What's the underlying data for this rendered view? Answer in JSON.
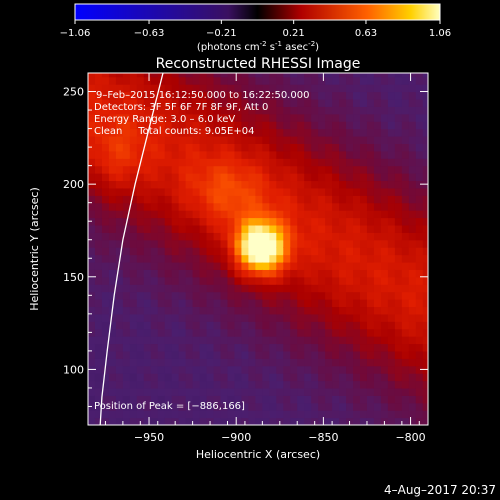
{
  "colorbar": {
    "ticks": [
      "-1.06",
      "-0.63",
      "-0.21",
      "0.21",
      "0.63",
      "1.06"
    ],
    "range": [
      -1.06,
      1.06
    ],
    "unit_base": "(photons cm",
    "unit_exp1": "-2",
    "unit_mid": " s",
    "unit_exp2": "-1",
    "unit_mid2": " asec",
    "unit_exp3": "-2",
    "unit_end": ")"
  },
  "chart_data": {
    "type": "heatmap",
    "title": "Reconstructed RHESSI Image",
    "xlabel": "Heliocentric X (arcsec)",
    "ylabel": "Heliocentric Y (arcsec)",
    "xlim": [
      -985,
      -790
    ],
    "ylim": [
      70,
      260
    ],
    "xticks": [
      -950,
      -900,
      -850,
      -800
    ],
    "xtick_labels": [
      "−950",
      "−900",
      "−850",
      "−800"
    ],
    "yticks": [
      100,
      150,
      200,
      250
    ],
    "ytick_labels": [
      "100",
      "150",
      "200",
      "250"
    ],
    "peak_xy": [
      -886,
      166
    ],
    "peak_value": 1.06,
    "annotations": {
      "time": "9–Feb–2015 16:12:50.000 to 16:22:50.000",
      "detectors": "Detectors: 3F 5F 6F 7F 8F 9F, Att 0",
      "energy": "Energy Range: 3.0 – 6.0 keV",
      "clean": "Clean     Total counts: 9.05E+04",
      "peak": "Position of Peak = [−886,166]"
    },
    "limb": [
      [
        -942,
        260
      ],
      [
        -950,
        230
      ],
      [
        -958,
        200
      ],
      [
        -965,
        170
      ],
      [
        -970,
        140
      ],
      [
        -974,
        110
      ],
      [
        -977,
        85
      ],
      [
        -978,
        70
      ]
    ]
  },
  "timestamp": "4–Aug–2017 20:37"
}
